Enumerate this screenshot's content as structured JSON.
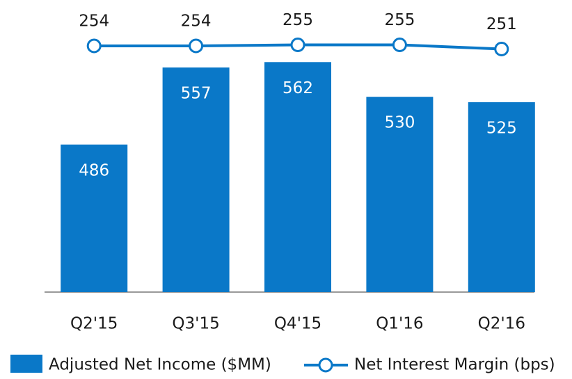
{
  "chart_data": {
    "type": "bar+line",
    "categories": [
      "Q2'15",
      "Q3'15",
      "Q4'15",
      "Q1'16",
      "Q2'16"
    ],
    "ylim": [
      350,
      600
    ],
    "y2lim": [
      18,
      278
    ],
    "series": [
      {
        "name": "Adjusted Net Income ($MM)",
        "type": "bar",
        "color": "#0a78c8",
        "values": [
          486,
          557,
          562,
          530,
          525
        ]
      },
      {
        "name": "Net Interest Margin (bps)",
        "type": "line",
        "axis": "y2",
        "color": "#0a78c8",
        "values": [
          254,
          254,
          255,
          255,
          251
        ]
      }
    ]
  }
}
